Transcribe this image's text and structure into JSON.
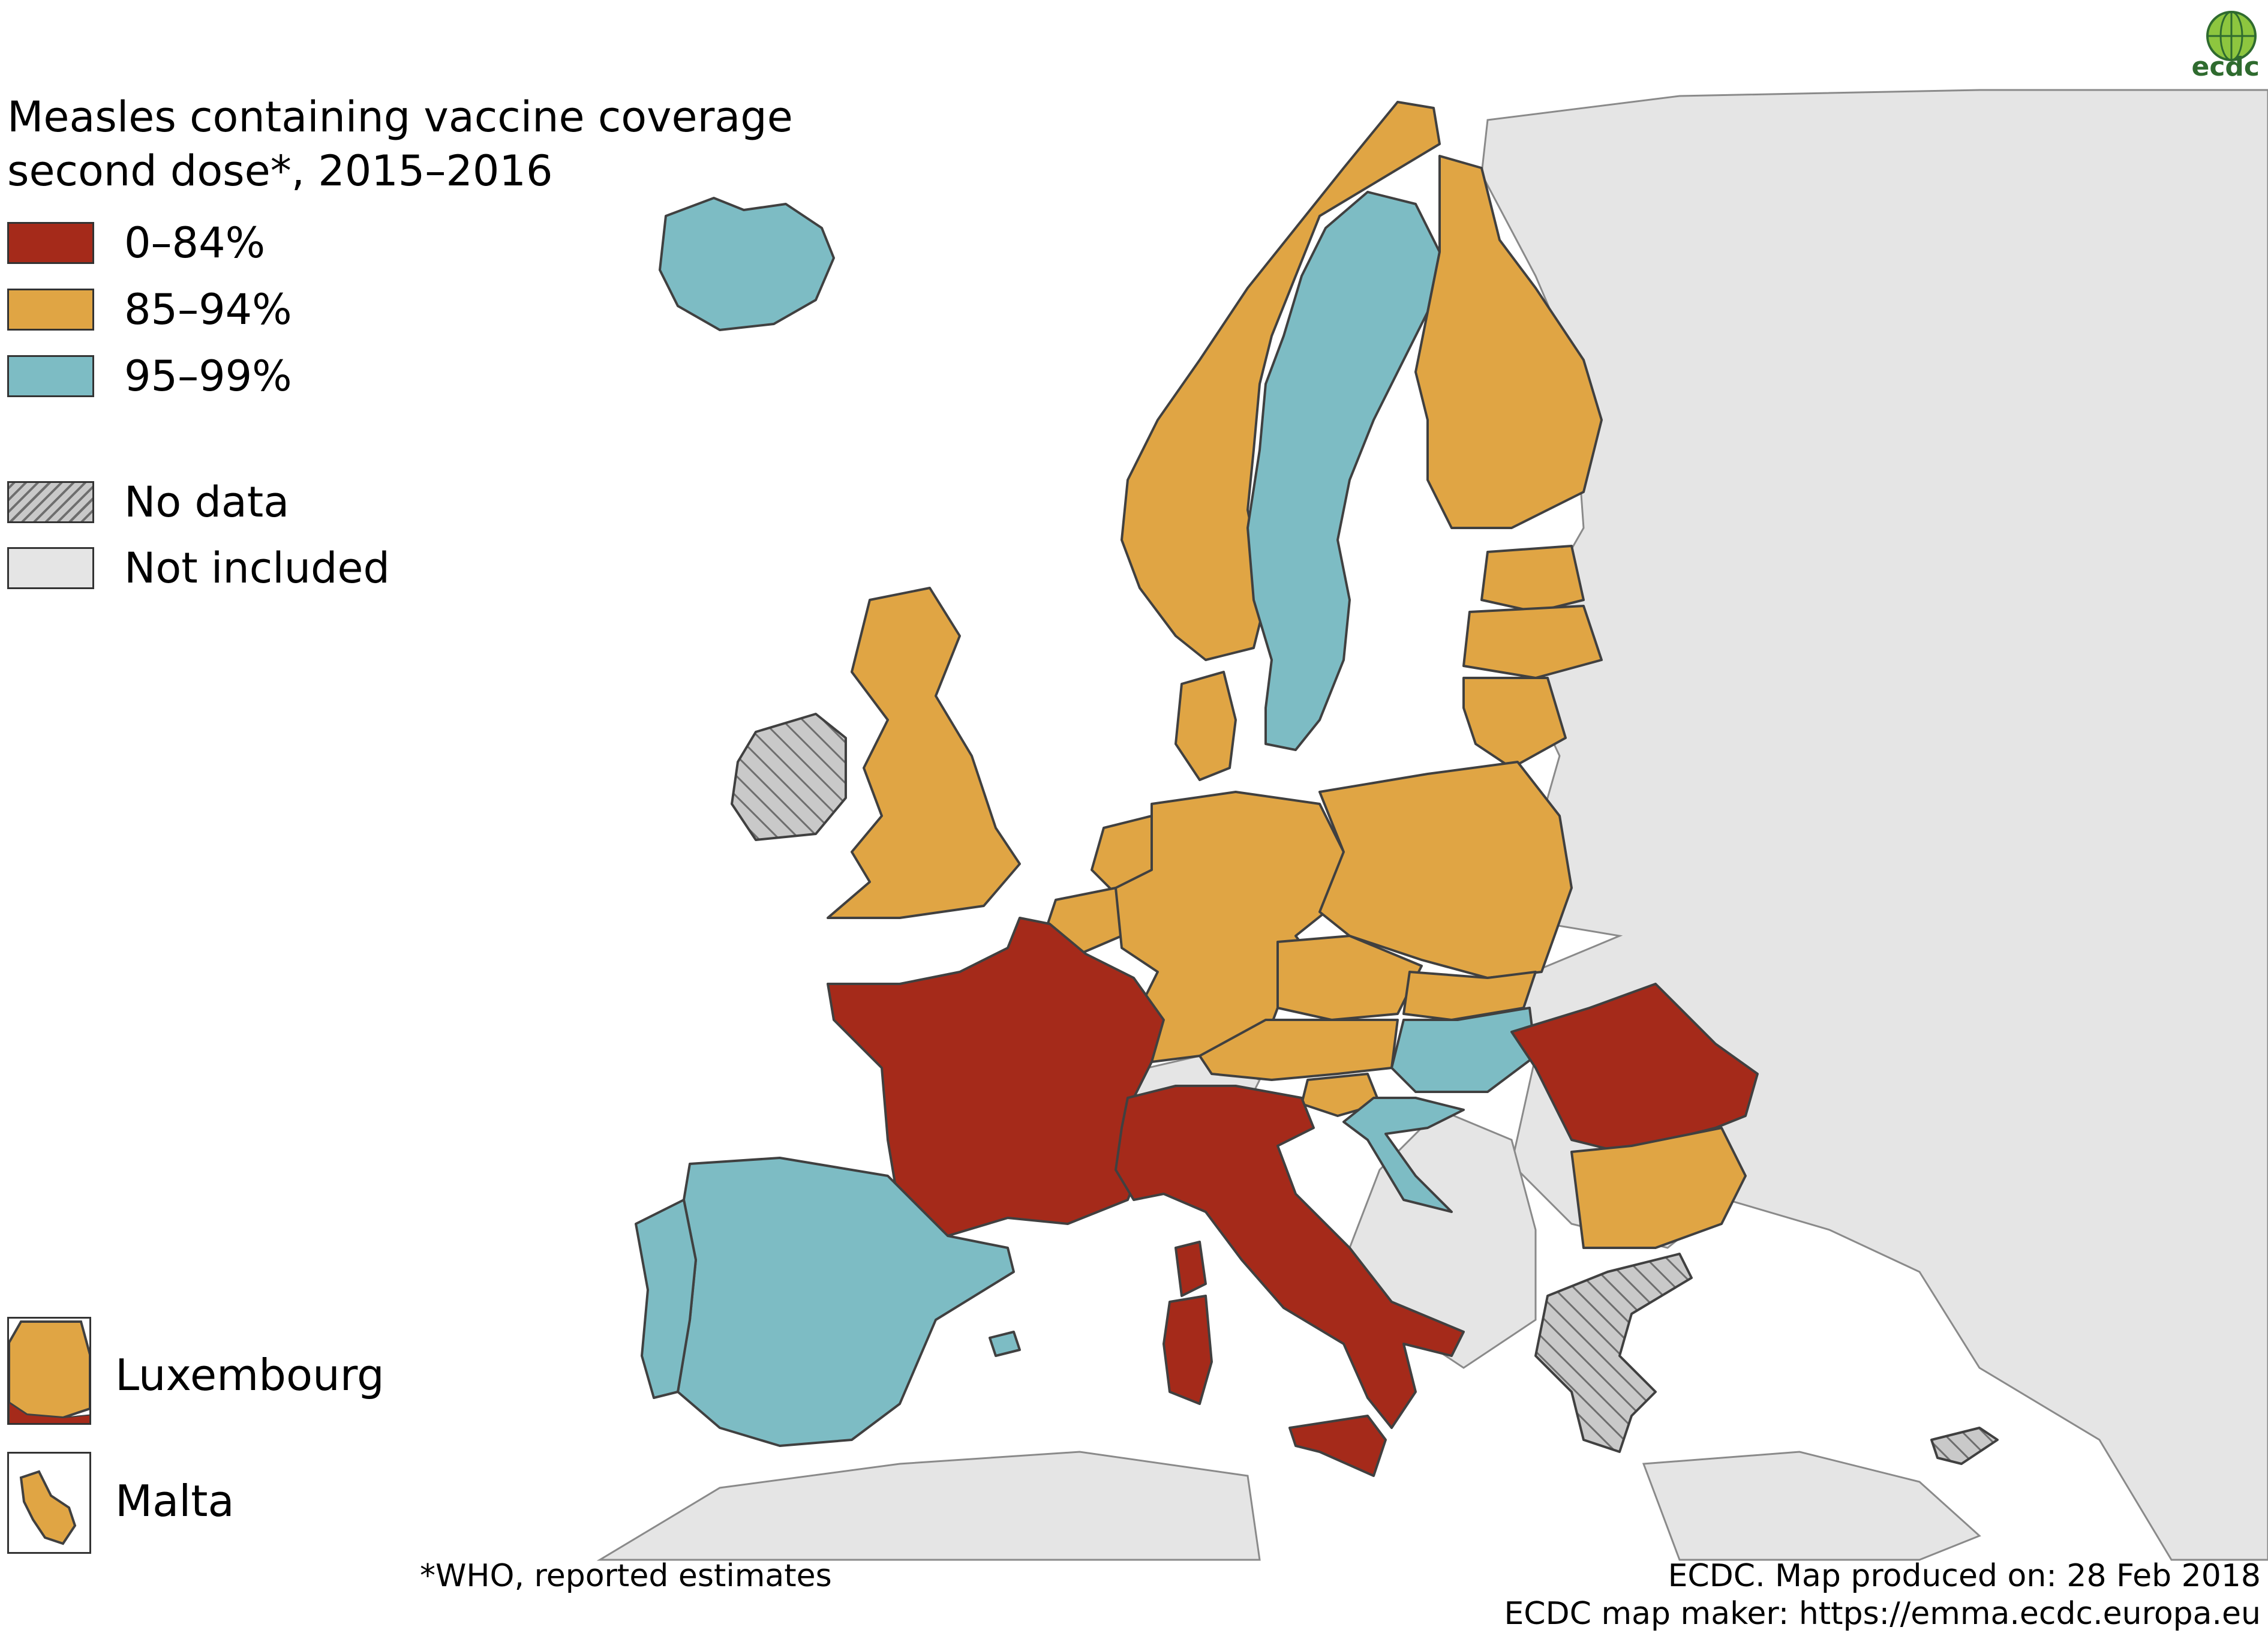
{
  "title_line1": "Measles containing vaccine coverage",
  "title_line2": "second dose*, 2015–2016",
  "legend": {
    "low": {
      "label": "0–84%",
      "color": "#a52a1a"
    },
    "mid": {
      "label": "85–94%",
      "color": "#e0a544"
    },
    "high": {
      "label": "95–99%",
      "color": "#7dbcc4"
    },
    "no_data": {
      "label": "No data"
    },
    "not_included": {
      "label": "Not included",
      "color": "#e5e5e5"
    }
  },
  "insets": {
    "luxembourg": "Luxembourg",
    "malta": "Malta"
  },
  "footnote": "*WHO, reported estimates",
  "produced": "ECDC. Map produced on: 28 Feb 2018",
  "map_maker": "ECDC map maker: https://emma.ecdc.europa.eu",
  "logo_text": "ecdc",
  "countries": {
    "Iceland": "high",
    "Norway": "mid",
    "Sweden": "high",
    "Finland": "mid",
    "Estonia": "mid",
    "Latvia": "mid",
    "Lithuania": "mid",
    "Denmark": "mid",
    "United Kingdom": "mid",
    "Ireland": "no_data",
    "Netherlands": "mid",
    "Belgium": "mid",
    "Luxembourg": "mid",
    "Germany": "mid",
    "Poland": "mid",
    "Czech Republic": "mid",
    "Slovakia": "mid",
    "Austria": "mid",
    "Slovenia": "mid",
    "Hungary": "high",
    "Croatia": "high",
    "France": "low",
    "Spain": "high",
    "Portugal": "high",
    "Italy": "low",
    "Romania": "low",
    "Bulgaria": "mid",
    "Greece": "no_data",
    "Cyprus": "no_data",
    "Malta": "mid"
  }
}
